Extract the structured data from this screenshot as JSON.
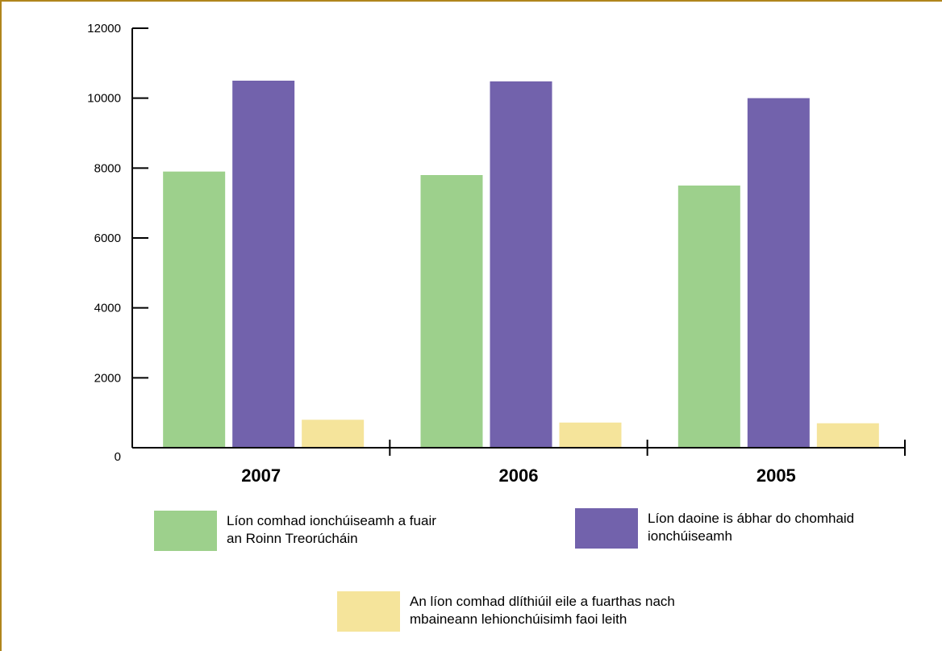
{
  "chart_data": {
    "type": "bar",
    "categories": [
      "2007",
      "2006",
      "2005"
    ],
    "series": [
      {
        "name": "Líon comhad ionchúiseamh a fuair an Roinn Treorúcháin",
        "color": "#9dd08c",
        "values": [
          7900,
          7800,
          7500
        ]
      },
      {
        "name": "Líon daoine is ábhar do chomhaid ionchúiseamh",
        "color": "#7262ac",
        "values": [
          10500,
          10480,
          10000
        ]
      },
      {
        "name": "An líon comhad dlíthiúil eile a fuarthas nach mbaineann lehionchúisimh faoi leith",
        "color": "#f5e49b",
        "values": [
          800,
          720,
          700
        ]
      }
    ],
    "yticks": [
      "0",
      "2000",
      "4000",
      "6000",
      "8000",
      "10000",
      "12000"
    ],
    "ylim": [
      0,
      12000
    ],
    "title": "",
    "xlabel": "",
    "ylabel": "",
    "legend_position": "bottom"
  },
  "legend": {
    "items": [
      {
        "label_lines": [
          "Líon comhad ionchúiseamh a fuair",
          "an Roinn Treorúcháin"
        ]
      },
      {
        "label_lines": [
          "Líon daoine is ábhar do chomhaid",
          "ionchúiseamh"
        ]
      },
      {
        "label_lines": [
          "An líon comhad dlíthiúil eile a fuarthas nach",
          "mbaineann lehionchúisimh faoi leith"
        ]
      }
    ]
  }
}
